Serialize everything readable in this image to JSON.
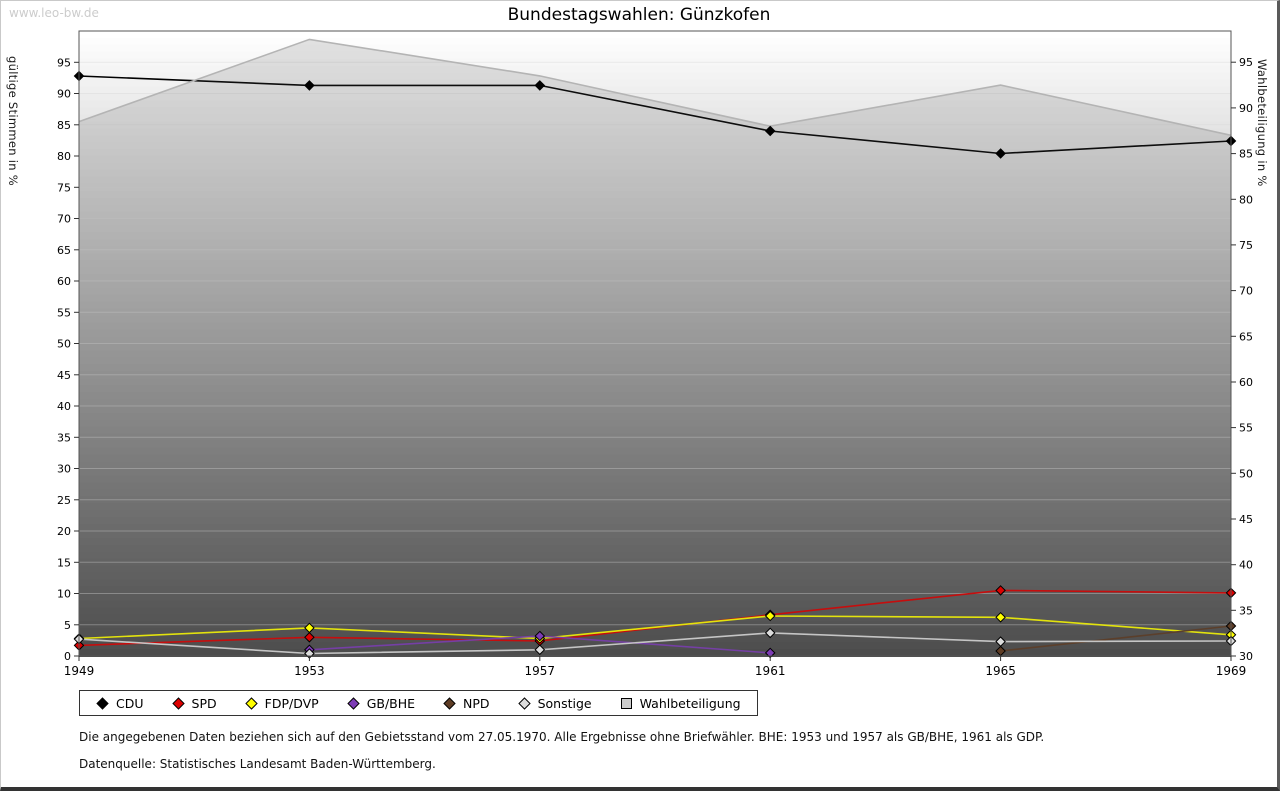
{
  "watermark": "www.leo-bw.de",
  "title": "Bundestagswahlen: Günzkofen",
  "axes": {
    "left_label": "gültige Stimmen in %",
    "right_label": "Wahlbeteiligung in %"
  },
  "footnotes": {
    "line1": "Die angegebenen Daten beziehen sich auf den Gebietsstand vom 27.05.1970. Alle Ergebnisse ohne Briefwähler. BHE: 1953 und 1957 als GB/BHE, 1961 als GDP.",
    "line2": "Datenquelle: Statistisches Landesamt Baden-Württemberg."
  },
  "chart_data": {
    "type": "line",
    "title": "Bundestagswahlen: Günzkofen",
    "x": [
      1949,
      1953,
      1957,
      1961,
      1965,
      1969
    ],
    "left_axis": {
      "label": "gültige Stimmen in %",
      "min": 0,
      "max": 100,
      "tick_min": 0,
      "tick_max": 95,
      "tick_step": 5
    },
    "right_axis": {
      "label": "Wahlbeteiligung in %",
      "min": 30,
      "max": 98.42,
      "tick_min": 30,
      "tick_max": 95,
      "tick_step": 5
    },
    "grid": true,
    "legend_position": "bottom-left",
    "background": {
      "gradient_top": "#ffffff",
      "gradient_bottom": "#4d4d4d"
    },
    "series": [
      {
        "name": "CDU",
        "axis": "left",
        "color": "#000000",
        "marker": "diamond",
        "values": [
          92.8,
          91.3,
          91.3,
          84.0,
          80.4,
          82.4
        ]
      },
      {
        "name": "SPD",
        "axis": "left",
        "color": "#dd0000",
        "marker": "diamond",
        "values": [
          1.7,
          3.0,
          2.4,
          6.6,
          10.5,
          10.1
        ]
      },
      {
        "name": "FDP/DVP",
        "axis": "left",
        "color": "#ffff00",
        "marker": "diamond",
        "values": [
          2.8,
          4.5,
          2.8,
          6.4,
          6.2,
          3.4
        ]
      },
      {
        "name": "GB/BHE",
        "axis": "left",
        "color": "#7d3cb5",
        "marker": "diamond",
        "values": [
          null,
          1.0,
          3.2,
          0.5,
          null,
          null
        ]
      },
      {
        "name": "NPD",
        "axis": "left",
        "color": "#5e3c24",
        "marker": "diamond",
        "values": [
          null,
          null,
          null,
          null,
          0.8,
          4.8
        ]
      },
      {
        "name": "Sonstige",
        "axis": "left",
        "color": "#dcdcdc",
        "marker": "diamond",
        "values": [
          2.7,
          0.4,
          1.0,
          3.7,
          2.3,
          2.4
        ]
      },
      {
        "name": "Wahlbeteiligung",
        "axis": "right",
        "color": "#b4b4b4",
        "marker": "none",
        "area": true,
        "values": [
          88.5,
          97.5,
          93.5,
          88.0,
          92.5,
          87.0
        ]
      }
    ]
  },
  "legend": {
    "items": [
      {
        "label": "CDU",
        "color": "#000000",
        "shape": "diamond"
      },
      {
        "label": "SPD",
        "color": "#dd0000",
        "shape": "diamond"
      },
      {
        "label": "FDP/DVP",
        "color": "#ffff00",
        "shape": "diamond"
      },
      {
        "label": "GB/BHE",
        "color": "#7d3cb5",
        "shape": "diamond"
      },
      {
        "label": "NPD",
        "color": "#5e3c24",
        "shape": "diamond"
      },
      {
        "label": "Sonstige",
        "color": "#dcdcdc",
        "shape": "diamond"
      },
      {
        "label": "Wahlbeteiligung",
        "color": "#cccccc",
        "shape": "square"
      }
    ]
  }
}
